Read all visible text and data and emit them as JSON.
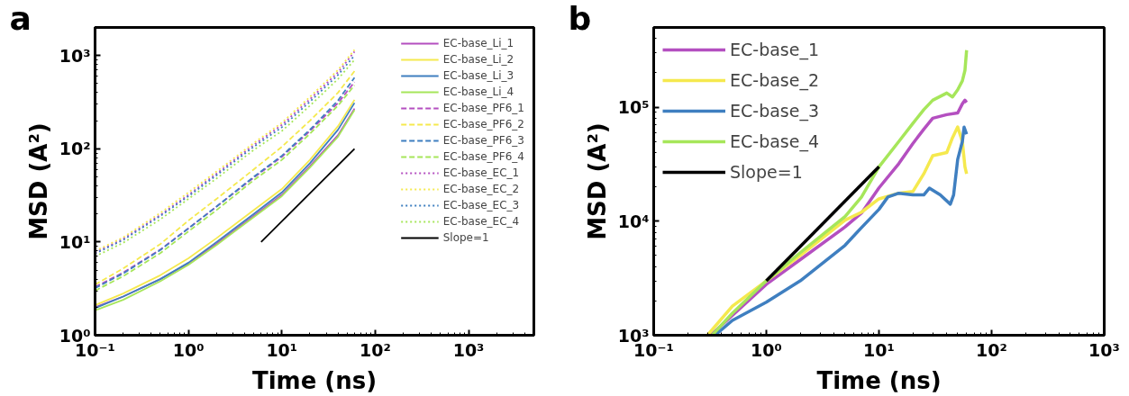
{
  "chart_data": [
    {
      "type": "line",
      "title": "a",
      "xlabel": "Time (ns)",
      "ylabel": "MSD (A²)",
      "log": "xy",
      "grid": false,
      "legend": "top right",
      "xlim": [
        0.1,
        5000
      ],
      "ylim": [
        1,
        2000
      ],
      "xticks": [
        {
          "value": 0.1,
          "label": "10⁻¹"
        },
        {
          "value": 1,
          "label": "10⁰"
        },
        {
          "value": 10,
          "label": "10¹"
        },
        {
          "value": 100,
          "label": "10²"
        },
        {
          "value": 1000,
          "label": "10³"
        }
      ],
      "yticks": [
        {
          "value": 1,
          "label": "10⁰"
        },
        {
          "value": 10,
          "label": "10¹"
        },
        {
          "value": 100,
          "label": "10²"
        },
        {
          "value": 1000,
          "label": "10³"
        }
      ],
      "series": [
        {
          "name": "EC-base_Li_1",
          "color": "#b44fc0",
          "line_style": "solid",
          "x": [
            0.1,
            0.2,
            0.5,
            1,
            2,
            5,
            10,
            20,
            40,
            60
          ],
          "values": [
            2.0,
            2.6,
            4.0,
            5.9,
            9.6,
            19,
            32,
            65,
            140,
            270
          ]
        },
        {
          "name": "EC-base_Li_2",
          "color": "#f5e94e",
          "line_style": "solid",
          "x": [
            0.1,
            0.2,
            0.5,
            1,
            2,
            5,
            10,
            20,
            40,
            60
          ],
          "values": [
            2.1,
            2.8,
            4.4,
            6.7,
            11,
            22,
            37,
            76,
            175,
            335
          ]
        },
        {
          "name": "EC-base_Li_3",
          "color": "#3f7fc0",
          "line_style": "solid",
          "x": [
            0.1,
            0.2,
            0.5,
            1,
            2,
            5,
            10,
            20,
            40,
            60
          ],
          "values": [
            1.95,
            2.6,
            4.0,
            6.0,
            10,
            20,
            34,
            70,
            160,
            310
          ]
        },
        {
          "name": "EC-base_Li_4",
          "color": "#a6e65a",
          "line_style": "solid",
          "x": [
            0.1,
            0.2,
            0.5,
            1,
            2,
            5,
            10,
            20,
            40,
            60
          ],
          "values": [
            1.85,
            2.4,
            3.8,
            5.7,
            9.3,
            18.5,
            31,
            63,
            135,
            260
          ]
        },
        {
          "name": "EC-base_PF6_1",
          "color": "#b44fc0",
          "line_style": "dashed",
          "x": [
            0.1,
            0.2,
            0.5,
            1,
            2,
            5,
            10,
            20,
            40,
            60
          ],
          "values": [
            3.3,
            4.7,
            8.3,
            14,
            24,
            49,
            82,
            155,
            310,
            520
          ]
        },
        {
          "name": "EC-base_PF6_2",
          "color": "#f5e94e",
          "line_style": "dashed",
          "x": [
            0.1,
            0.2,
            0.5,
            1,
            2,
            5,
            10,
            20,
            40,
            60
          ],
          "values": [
            3.5,
            5.2,
            9.5,
            17,
            29,
            60,
            105,
            200,
            400,
            680
          ]
        },
        {
          "name": "EC-base_PF6_3",
          "color": "#3f7fc0",
          "line_style": "dashed",
          "x": [
            0.1,
            0.2,
            0.5,
            1,
            2,
            5,
            10,
            20,
            40,
            60
          ],
          "values": [
            3.2,
            4.6,
            8.2,
            14,
            24,
            50,
            84,
            160,
            330,
            580
          ]
        },
        {
          "name": "EC-base_PF6_4",
          "color": "#a6e65a",
          "line_style": "dashed",
          "x": [
            0.1,
            0.2,
            0.5,
            1,
            2,
            5,
            10,
            20,
            40,
            60
          ],
          "values": [
            3.0,
            4.3,
            7.6,
            13,
            22,
            46,
            76,
            145,
            290,
            480
          ]
        },
        {
          "name": "EC-base_EC_1",
          "color": "#b44fc0",
          "line_style": "dotted",
          "x": [
            0.1,
            0.2,
            0.5,
            1,
            2,
            5,
            10,
            20,
            40,
            60
          ],
          "values": [
            7.7,
            10.8,
            19.5,
            32,
            54,
            110,
            180,
            340,
            660,
            1100
          ]
        },
        {
          "name": "EC-base_EC_2",
          "color": "#f5e94e",
          "line_style": "dotted",
          "x": [
            0.1,
            0.2,
            0.5,
            1,
            2,
            5,
            10,
            20,
            40,
            60
          ],
          "values": [
            8.0,
            11.2,
            20.5,
            34,
            57,
            115,
            190,
            360,
            700,
            1150
          ]
        },
        {
          "name": "EC-base_EC_3",
          "color": "#3f7fc0",
          "line_style": "dotted",
          "x": [
            0.1,
            0.2,
            0.5,
            1,
            2,
            5,
            10,
            20,
            40,
            60
          ],
          "values": [
            7.5,
            10.5,
            19,
            31,
            52,
            105,
            170,
            320,
            620,
            1000
          ]
        },
        {
          "name": "EC-base_EC_4",
          "color": "#a6e65a",
          "line_style": "dotted",
          "x": [
            0.1,
            0.2,
            0.5,
            1,
            2,
            5,
            10,
            20,
            40,
            60
          ],
          "values": [
            7.0,
            9.8,
            17.5,
            29,
            48,
            97,
            155,
            290,
            560,
            900
          ]
        },
        {
          "name": "Slope=1",
          "color": "#000000",
          "line_style": "solid",
          "x": [
            6,
            60
          ],
          "values": [
            10,
            100
          ]
        }
      ]
    },
    {
      "type": "line",
      "title": "b",
      "xlabel": "Time (ns)",
      "ylabel": "MSD (A²)",
      "log": "xy",
      "grid": false,
      "legend": "top left",
      "xlim": [
        0.1,
        1000
      ],
      "ylim": [
        1000,
        500000
      ],
      "xticks": [
        {
          "value": 0.1,
          "label": "10⁻¹"
        },
        {
          "value": 1,
          "label": "10⁰"
        },
        {
          "value": 10,
          "label": "10¹"
        },
        {
          "value": 100,
          "label": "10²"
        },
        {
          "value": 1000,
          "label": "10³"
        }
      ],
      "yticks": [
        {
          "value": 1000,
          "label": "10³"
        },
        {
          "value": 10000,
          "label": "10⁴"
        },
        {
          "value": 100000,
          "label": "10⁵"
        }
      ],
      "series": [
        {
          "name": "EC-base_1",
          "color": "#b44fc0",
          "line_style": "solid",
          "x": [
            0.32,
            1,
            2,
            5,
            7,
            10,
            15,
            20,
            25,
            30,
            40,
            50,
            55,
            58,
            60
          ],
          "values": [
            1000,
            2800,
            4600,
            8900,
            11800,
            19600,
            32000,
            48000,
            64000,
            80000,
            86000,
            89000,
            107000,
            115000,
            110000
          ]
        },
        {
          "name": "EC-base_2",
          "color": "#f5e94e",
          "line_style": "solid",
          "x": [
            0.3,
            0.5,
            1,
            2,
            5,
            7,
            10,
            15,
            20,
            25,
            30,
            40,
            45,
            50,
            55,
            58,
            60
          ],
          "values": [
            1000,
            1800,
            3000,
            5000,
            10200,
            12000,
            15700,
            17600,
            18200,
            26000,
            37500,
            40000,
            54000,
            67000,
            50000,
            30000,
            26000
          ]
        },
        {
          "name": "EC-base_3",
          "color": "#3f7fc0",
          "line_style": "solid",
          "x": [
            0.35,
            0.5,
            1,
            2,
            5,
            7,
            10,
            12,
            15,
            20,
            25,
            28,
            35,
            43,
            46,
            50,
            55,
            57,
            60
          ],
          "values": [
            1000,
            1350,
            1950,
            3000,
            6150,
            8800,
            12700,
            16300,
            17600,
            17000,
            17000,
            19500,
            17000,
            14100,
            17000,
            34800,
            50000,
            66800,
            58000
          ]
        },
        {
          "name": "EC-base_4",
          "color": "#a6e65a",
          "line_style": "solid",
          "x": [
            0.33,
            0.5,
            1,
            2,
            5,
            7,
            10,
            15,
            20,
            25,
            30,
            40,
            45,
            50,
            55,
            58,
            60
          ],
          "values": [
            1000,
            1560,
            3000,
            5300,
            11000,
            16300,
            30000,
            50000,
            72000,
            95000,
            115000,
            133000,
            123000,
            142000,
            170000,
            210000,
            316000
          ]
        },
        {
          "name": "Slope=1",
          "color": "#000000",
          "line_style": "solid",
          "x": [
            1,
            10
          ],
          "values": [
            3000,
            30000
          ]
        }
      ]
    }
  ]
}
